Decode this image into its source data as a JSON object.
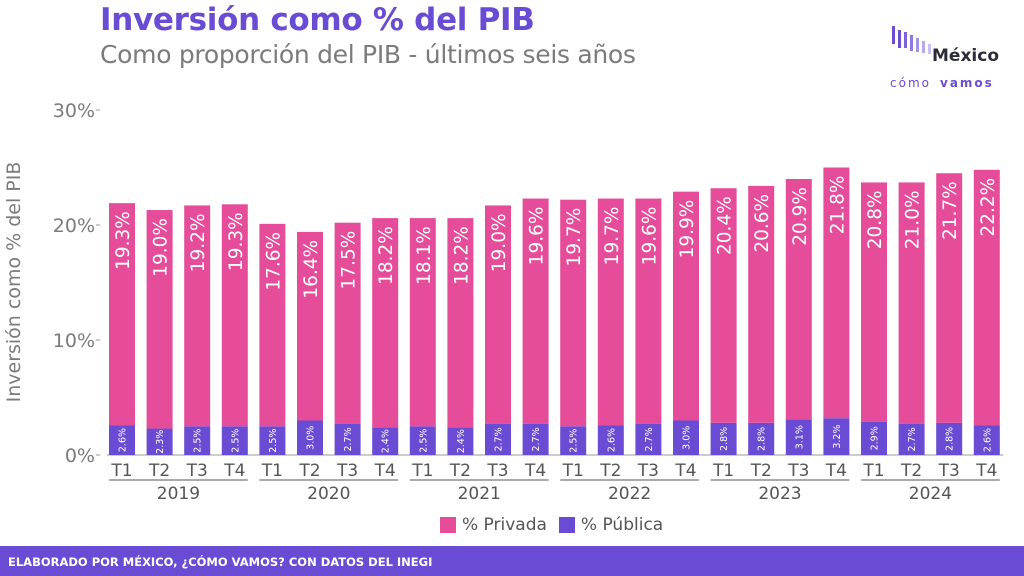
{
  "header": {
    "title": "Inversión como % del PIB",
    "subtitle": "Como proporción del PIB - últimos seis años"
  },
  "logo": {
    "name": "México",
    "sub_1": "cómo",
    "sub_2": "vamos"
  },
  "footer": {
    "text": "ELABORADO POR MÉXICO, ¿CÓMO VAMOS? CON DATOS DEL INEGI"
  },
  "colors": {
    "privada": "#e54c9a",
    "publica": "#6a4cd4",
    "title": "#6a4cd4",
    "footer": "#6a4cd4"
  },
  "chart_data": {
    "type": "bar",
    "stacked": true,
    "ylabel": "Inversión como % del PIB",
    "ylim": [
      0,
      30
    ],
    "yticks": [
      "0%",
      "10%",
      "20%",
      "30%"
    ],
    "ytick_values": [
      0,
      10,
      20,
      30
    ],
    "quarters": [
      "T1",
      "T2",
      "T3",
      "T4",
      "T1",
      "T2",
      "T3",
      "T4",
      "T1",
      "T2",
      "T3",
      "T4",
      "T1",
      "T2",
      "T3",
      "T4",
      "T1",
      "T2",
      "T3",
      "T4",
      "T1",
      "T2",
      "T3",
      "T4"
    ],
    "years": [
      "2019",
      "2020",
      "2021",
      "2022",
      "2023",
      "2024"
    ],
    "legend_position": "bottom",
    "series": [
      {
        "name": "% Pública",
        "color": "#6a4cd4",
        "values": [
          2.6,
          2.3,
          2.5,
          2.5,
          2.5,
          3.0,
          2.7,
          2.4,
          2.5,
          2.4,
          2.7,
          2.7,
          2.5,
          2.6,
          2.7,
          3.0,
          2.8,
          2.8,
          3.1,
          3.2,
          2.9,
          2.7,
          2.8,
          2.6
        ],
        "labels": [
          "2.6%",
          "2.3%",
          "2.5%",
          "2.5%",
          "2.5%",
          "3.0%",
          "2.7%",
          "2.4%",
          "2.5%",
          "2.4%",
          "2.7%",
          "2.7%",
          "2.5%",
          "2.6%",
          "2.7%",
          "3.0%",
          "2.8%",
          "2.8%",
          "3.1%",
          "3.2%",
          "2.9%",
          "2.7%",
          "2.8%",
          "2.6%"
        ]
      },
      {
        "name": "% Privada",
        "color": "#e54c9a",
        "values": [
          19.3,
          19.0,
          19.2,
          19.3,
          17.6,
          16.4,
          17.5,
          18.2,
          18.1,
          18.2,
          19.0,
          19.6,
          19.7,
          19.7,
          19.6,
          19.9,
          20.4,
          20.6,
          20.9,
          21.8,
          20.8,
          21.0,
          21.7,
          22.2
        ],
        "labels": [
          "19.3%",
          "19.0%",
          "19.2%",
          "19.3%",
          "17.6%",
          "16.4%",
          "17.5%",
          "18.2%",
          "18.1%",
          "18.2%",
          "19.0%",
          "19.6%",
          "19.7%",
          "19.7%",
          "19.6%",
          "19.9%",
          "20.4%",
          "20.6%",
          "20.9%",
          "21.8%",
          "20.8%",
          "21.0%",
          "21.7%",
          "22.2%"
        ]
      }
    ]
  }
}
